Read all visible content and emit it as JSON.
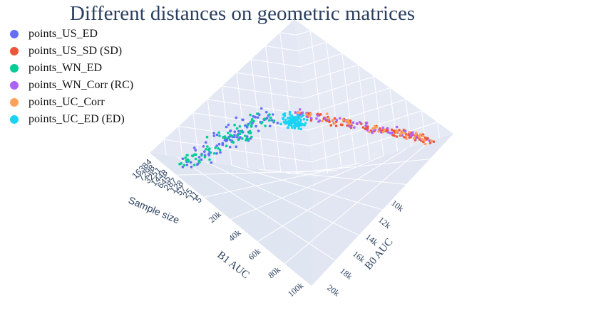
{
  "chart_data": {
    "type": "scatter3d",
    "title": "Different distances on geometric matrices",
    "legend_position": "top-left",
    "grid": true,
    "axes": {
      "x": {
        "label": "B0 AUC",
        "ticks": [
          "10k",
          "12k",
          "14k",
          "16k",
          "18k",
          "20k"
        ]
      },
      "y": {
        "label": "B1 AUC",
        "ticks": [
          "20k",
          "40k",
          "60k",
          "80k",
          "100k"
        ]
      },
      "z": {
        "label": "Sample size",
        "ticks": [
          "16384",
          "7298",
          "3251",
          "1448",
          "645",
          "287",
          "128",
          "57",
          "25",
          "11",
          "5"
        ]
      }
    },
    "series": [
      {
        "name": "points_US_ED",
        "color": "#636efa",
        "region": "left-cluster",
        "n": 90
      },
      {
        "name": "points_US_SD (SD)",
        "color": "#ef553b",
        "region": "right-band",
        "n": 110
      },
      {
        "name": "points_WN_ED",
        "color": "#00cc96",
        "region": "left-cluster",
        "n": 80
      },
      {
        "name": "points_WN_Corr (RC)",
        "color": "#ab63fa",
        "region": "right-band",
        "n": 55
      },
      {
        "name": "points_UC_Corr",
        "color": "#ffa15a",
        "region": "right-band",
        "n": 45
      },
      {
        "name": "points_UC_ED (ED)",
        "color": "#19d3f3",
        "region": "middle-cluster",
        "n": 95
      }
    ]
  }
}
